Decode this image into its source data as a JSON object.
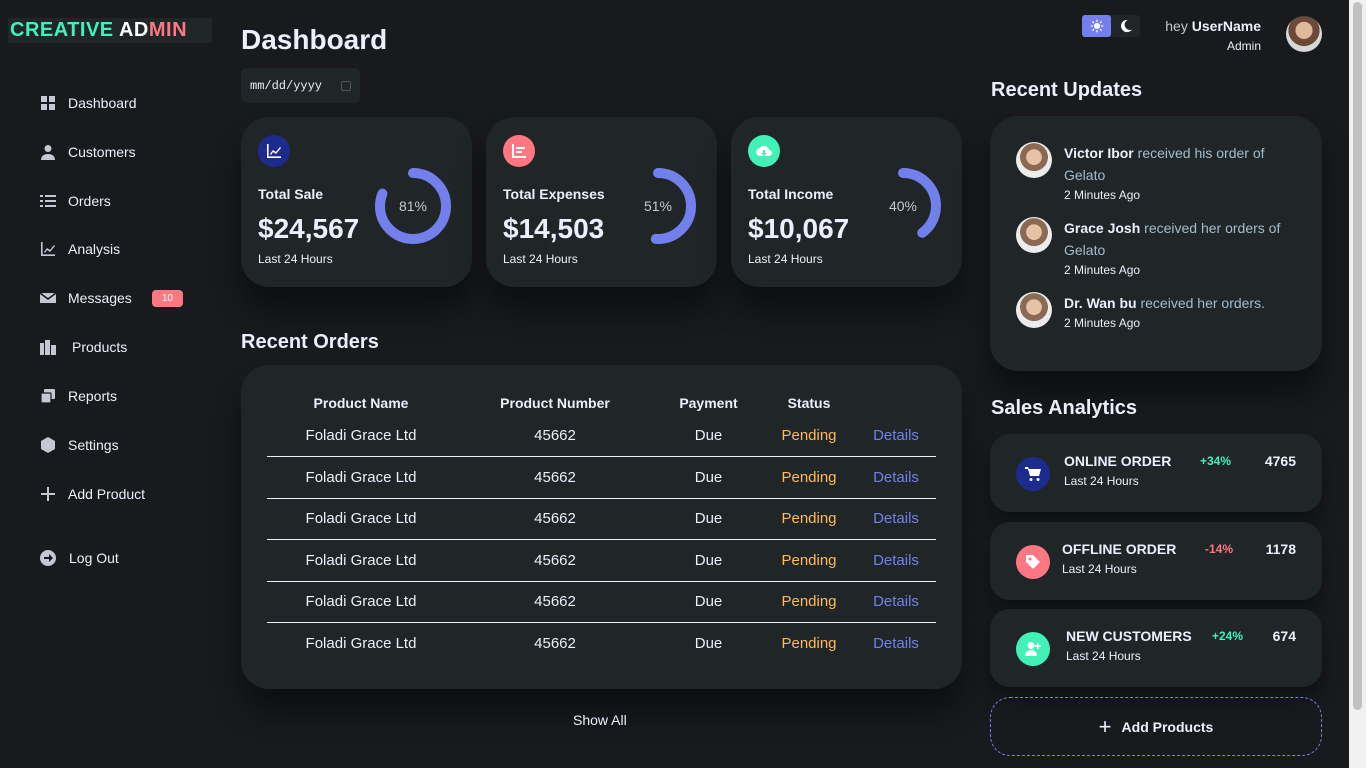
{
  "brand": {
    "part1": "CREATIVE",
    "part2": "ADMIN"
  },
  "sidebar": {
    "items": [
      {
        "label": "Dashboard",
        "icon": "dashboard-icon"
      },
      {
        "label": "Customers",
        "icon": "person-icon"
      },
      {
        "label": "Orders",
        "icon": "list-icon"
      },
      {
        "label": "Analysis",
        "icon": "line-chart-icon"
      },
      {
        "label": "Messages",
        "icon": "envelope-icon",
        "badge": "10"
      },
      {
        "label": "Products",
        "icon": "warehouse-icon"
      },
      {
        "label": "Reports",
        "icon": "report-icon"
      },
      {
        "label": "Settings",
        "icon": "settings-icon"
      },
      {
        "label": "Add Product",
        "icon": "plus-icon"
      },
      {
        "label": "Log Out",
        "icon": "logout-icon"
      }
    ]
  },
  "header": {
    "title": "Dashboard",
    "date_placeholder": "mm/dd/yyyy",
    "greeting": "hey",
    "username": "UserName",
    "role": "Admin"
  },
  "insights": [
    {
      "title": "Total Sale",
      "value": "$24,567",
      "sub": "Last 24 Hours",
      "percent_label": "81%",
      "percent": 81,
      "color": "#1d2b8f",
      "icon": "chart-icon"
    },
    {
      "title": "Total Expenses",
      "value": "$14,503",
      "sub": "Last 24 Hours",
      "percent_label": "51%",
      "percent": 51,
      "color": "#ff7782",
      "icon": "bar-chart-icon"
    },
    {
      "title": "Total Income",
      "value": "$10,067",
      "sub": "Last 24 Hours",
      "percent_label": "40%",
      "percent": 40,
      "color": "#41f1b6",
      "icon": "cloud-download-icon"
    }
  ],
  "recent_orders": {
    "title": "Recent Orders",
    "columns": [
      "Product Name",
      "Product Number",
      "Payment",
      "Status",
      ""
    ],
    "rows": [
      [
        "Foladi Grace Ltd",
        "45662",
        "Due",
        "Pending",
        "Details"
      ],
      [
        "Foladi Grace Ltd",
        "45662",
        "Due",
        "Pending",
        "Details"
      ],
      [
        "Foladi Grace Ltd",
        "45662",
        "Due",
        "Pending",
        "Details"
      ],
      [
        "Foladi Grace Ltd",
        "45662",
        "Due",
        "Pending",
        "Details"
      ],
      [
        "Foladi Grace Ltd",
        "45662",
        "Due",
        "Pending",
        "Details"
      ],
      [
        "Foladi Grace Ltd",
        "45662",
        "Due",
        "Pending",
        "Details"
      ]
    ],
    "show_all": "Show All"
  },
  "recent_updates": {
    "title": "Recent Updates",
    "items": [
      {
        "name": "Victor Ibor",
        "text": " received his order of Gelato",
        "time": "2 Minutes Ago"
      },
      {
        "name": "Grace Josh",
        "text": " received her orders of Gelato",
        "time": "2 Minutes Ago"
      },
      {
        "name": "Dr. Wan bu",
        "text": " received her orders.",
        "time": "2 Minutes Ago"
      }
    ]
  },
  "sales_analytics": {
    "title": "Sales Analytics",
    "items": [
      {
        "title": "ONLINE ORDER",
        "sub": "Last 24 Hours",
        "pct": "+34%",
        "value": "4765",
        "color": "#1d2b8f",
        "icon": "cart-icon",
        "trend": "up"
      },
      {
        "title": "OFFLINE ORDER",
        "sub": "Last 24 Hours",
        "pct": "-14%",
        "value": "1178",
        "color": "#ff7782",
        "icon": "tag-icon",
        "trend": "down"
      },
      {
        "title": "NEW CUSTOMERS",
        "sub": "Last 24 Hours",
        "pct": "+24%",
        "value": "674",
        "color": "#41f1b6",
        "icon": "add-user-icon",
        "trend": "up"
      }
    ],
    "add_button": "Add Products"
  }
}
